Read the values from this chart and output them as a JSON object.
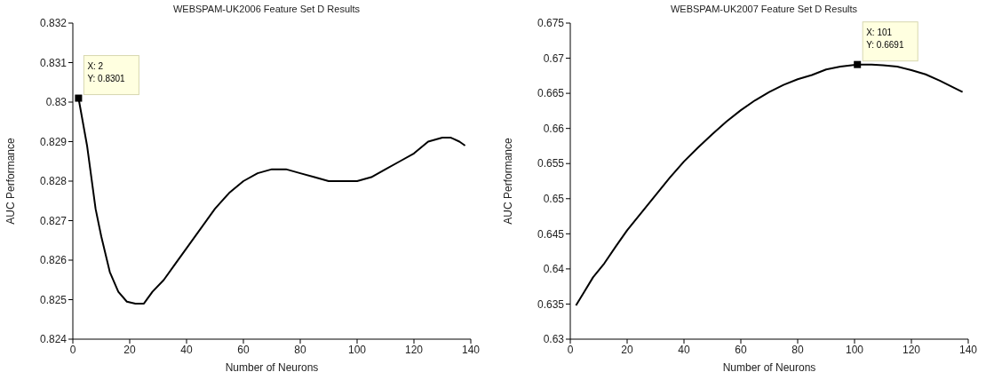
{
  "chart_data": [
    {
      "type": "line",
      "title": "WEBSPAM-UK2006 Feature Set D Results",
      "xlabel": "Number of Neurons",
      "ylabel": "AUC Performance",
      "marker": "none",
      "grid": false,
      "legend": false,
      "x": [
        2,
        5,
        8,
        10,
        13,
        16,
        19,
        22,
        25,
        28,
        32,
        36,
        40,
        45,
        50,
        55,
        60,
        65,
        70,
        75,
        80,
        85,
        90,
        95,
        100,
        105,
        110,
        115,
        120,
        125,
        130,
        133,
        136,
        138
      ],
      "series": [
        {
          "color": "#000000",
          "values": [
            0.8301,
            0.8289,
            0.8273,
            0.8266,
            0.8257,
            0.8252,
            0.82495,
            0.8249,
            0.8249,
            0.8252,
            0.8255,
            0.8259,
            0.8263,
            0.8268,
            0.8273,
            0.8277,
            0.828,
            0.8282,
            0.8283,
            0.8283,
            0.8282,
            0.8281,
            0.828,
            0.828,
            0.828,
            0.8281,
            0.8283,
            0.8285,
            0.8287,
            0.829,
            0.8291,
            0.8291,
            0.829,
            0.8289
          ]
        }
      ],
      "xlim": [
        0,
        140
      ],
      "xticks": [
        0,
        20,
        40,
        60,
        80,
        100,
        120,
        140
      ],
      "ylim": [
        0.824,
        0.832
      ],
      "yticks": [
        0.824,
        0.825,
        0.826,
        0.827,
        0.828,
        0.829,
        0.83,
        0.831,
        0.832
      ],
      "annotations": [
        {
          "text": "X: 2\nY: 0.8301",
          "x": 2,
          "y": 0.8301
        }
      ]
    },
    {
      "type": "line",
      "title": "WEBSPAM-UK2007 Feature Set D Results",
      "xlabel": "Number of Neurons",
      "ylabel": "AUC Performance",
      "marker": "none",
      "grid": false,
      "legend": false,
      "x": [
        2,
        5,
        8,
        12,
        16,
        20,
        25,
        30,
        35,
        40,
        45,
        50,
        55,
        60,
        65,
        70,
        75,
        80,
        85,
        90,
        95,
        101,
        106,
        110,
        115,
        120,
        125,
        130,
        135,
        138
      ],
      "series": [
        {
          "color": "#000000",
          "values": [
            0.6348,
            0.6368,
            0.6388,
            0.6408,
            0.6432,
            0.6455,
            0.648,
            0.6505,
            0.653,
            0.6553,
            0.6573,
            0.6592,
            0.661,
            0.6626,
            0.664,
            0.6652,
            0.6662,
            0.667,
            0.6676,
            0.6684,
            0.6688,
            0.6691,
            0.6691,
            0.669,
            0.6688,
            0.6683,
            0.6677,
            0.6668,
            0.6658,
            0.6652
          ]
        }
      ],
      "xlim": [
        0,
        140
      ],
      "xticks": [
        0,
        20,
        40,
        60,
        80,
        100,
        120,
        140
      ],
      "ylim": [
        0.63,
        0.675
      ],
      "yticks": [
        0.63,
        0.635,
        0.64,
        0.645,
        0.65,
        0.655,
        0.66,
        0.665,
        0.67,
        0.675
      ],
      "annotations": [
        {
          "text": "X: 101\nY: 0.6691",
          "x": 101,
          "y": 0.6691
        }
      ]
    }
  ]
}
